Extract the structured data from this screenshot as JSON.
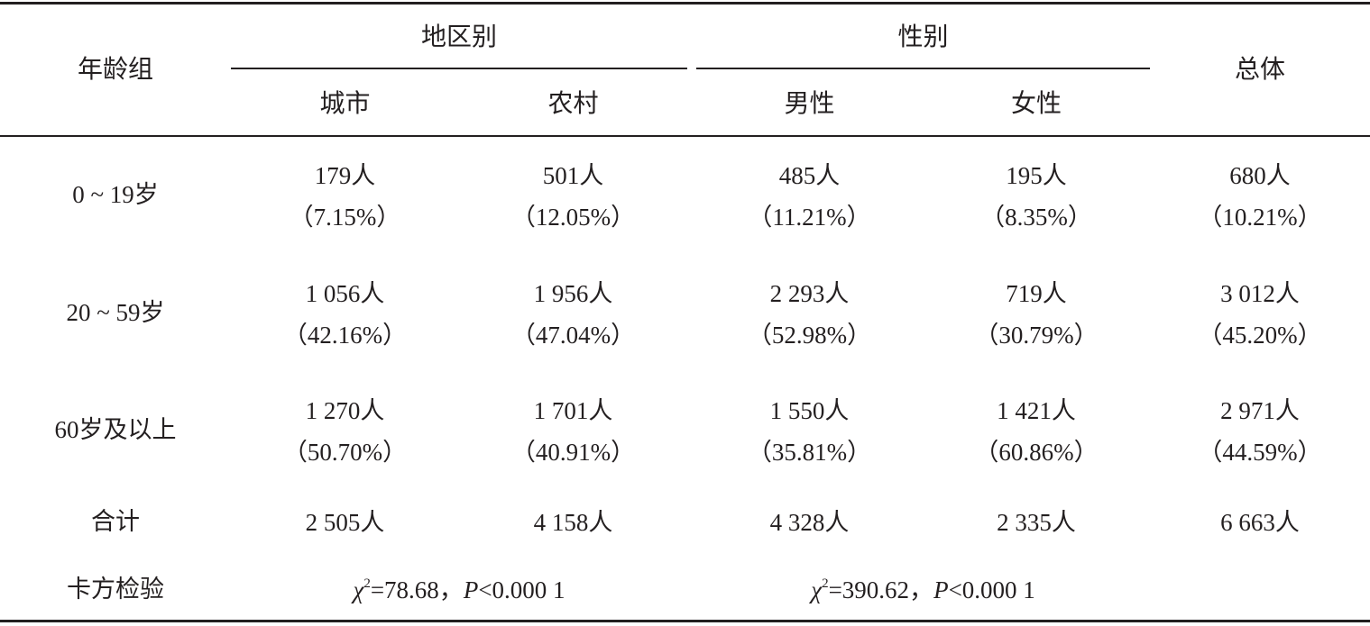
{
  "table": {
    "header": {
      "age_group": "年龄组",
      "region": "地区别",
      "gender": "性别",
      "total": "总体",
      "urban": "城市",
      "rural": "农村",
      "male": "男性",
      "female": "女性"
    },
    "rows": [
      {
        "label": "0 ~ 19岁",
        "urban": {
          "count": "179人",
          "pct": "（7.15%）"
        },
        "rural": {
          "count": "501人",
          "pct": "（12.05%）"
        },
        "male": {
          "count": "485人",
          "pct": "（11.21%）"
        },
        "female": {
          "count": "195人",
          "pct": "（8.35%）"
        },
        "total": {
          "count": "680人",
          "pct": "（10.21%）"
        }
      },
      {
        "label": "20 ~ 59岁",
        "urban": {
          "count": "1 056人",
          "pct": "（42.16%）"
        },
        "rural": {
          "count": "1 956人",
          "pct": "（47.04%）"
        },
        "male": {
          "count": "2 293人",
          "pct": "（52.98%）"
        },
        "female": {
          "count": "719人",
          "pct": "（30.79%）"
        },
        "total": {
          "count": "3 012人",
          "pct": "（45.20%）"
        }
      },
      {
        "label": "60岁及以上",
        "urban": {
          "count": "1 270人",
          "pct": "（50.70%）"
        },
        "rural": {
          "count": "1 701人",
          "pct": "（40.91%）"
        },
        "male": {
          "count": "1 550人",
          "pct": "（35.81%）"
        },
        "female": {
          "count": "1 421人",
          "pct": "（60.86%）"
        },
        "total": {
          "count": "2 971人",
          "pct": "（44.59%）"
        }
      }
    ],
    "sum_row": {
      "label": "合计",
      "urban": "2 505人",
      "rural": "4 158人",
      "male": "4 328人",
      "female": "2 335人",
      "total": "6 663人"
    },
    "chi_row": {
      "label": "卡方检验",
      "region": {
        "symbol": "χ",
        "sup": "2",
        "value": "=78.68，",
        "p": "P",
        "p_rest": "<0.000 1"
      },
      "gender": {
        "symbol": "χ",
        "sup": "2",
        "value": "=390.62，",
        "p": "P",
        "p_rest": "<0.000 1"
      }
    }
  }
}
